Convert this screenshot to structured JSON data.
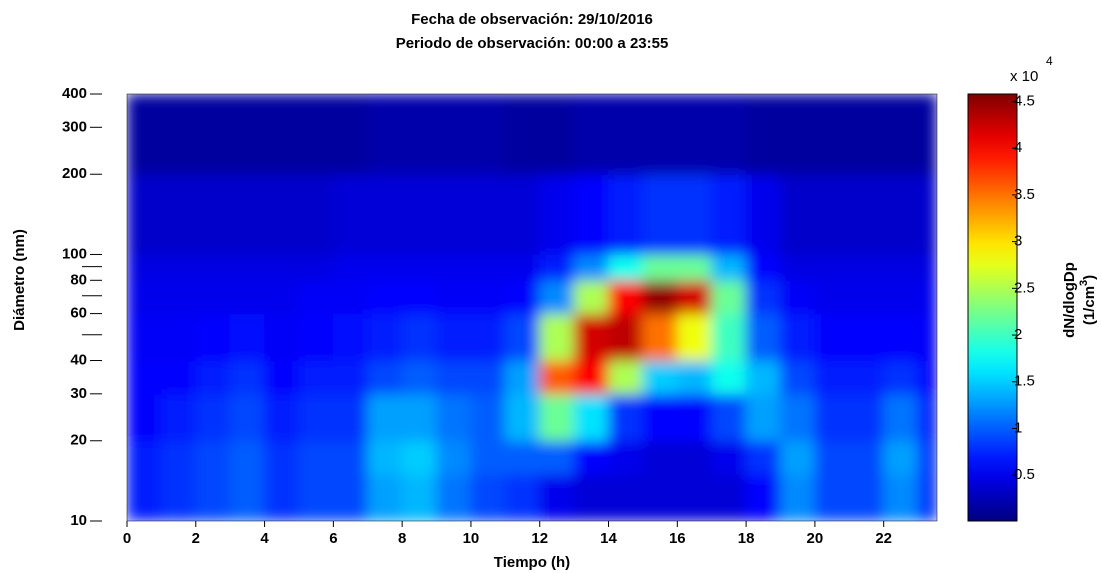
{
  "chart_data": {
    "type": "heatmap",
    "title": "Fecha de observación: 29/10/2016",
    "subtitle": "Periodo de observación: 00:00 a 23:55",
    "xlabel": "Tiempo (h)",
    "ylabel": "Diámetro (nm)",
    "colorbar_label": "dN/dlogDp",
    "colorbar_unit_parts": [
      "(1/cm",
      "3",
      ")"
    ],
    "colorbar_multiplier": "x 10",
    "colorbar_exponent": "4",
    "colormap": "jet",
    "yscale": "log",
    "xlim": [
      0,
      23.55
    ],
    "xticks": [
      0,
      2,
      4,
      6,
      8,
      10,
      12,
      14,
      16,
      18,
      20,
      22
    ],
    "ylim": [
      10,
      400
    ],
    "yticks": [
      10,
      20,
      30,
      40,
      60,
      80,
      100,
      200,
      300,
      400
    ],
    "yminor": [
      50,
      70,
      90
    ],
    "clim": [
      0.01,
      4.58
    ],
    "cticks": [
      0.5,
      1,
      1.5,
      2,
      2.5,
      3,
      3.5,
      4,
      4.5
    ],
    "x_edges": [
      0,
      1,
      2,
      3,
      4,
      5,
      6,
      7,
      8,
      9,
      10,
      11,
      12,
      13,
      14,
      15,
      16,
      17,
      18,
      19,
      20,
      21,
      22,
      23,
      23.55
    ],
    "y_edges": [
      10,
      15,
      20,
      30,
      40,
      60,
      80,
      100,
      200,
      400
    ],
    "values": [
      [
        0.7,
        0.7,
        0.6,
        0.6,
        0.55,
        0.5,
        0.45,
        0.35,
        0.15
      ],
      [
        0.8,
        0.8,
        0.7,
        0.6,
        0.55,
        0.5,
        0.45,
        0.35,
        0.15
      ],
      [
        0.9,
        0.9,
        0.8,
        0.7,
        0.6,
        0.5,
        0.45,
        0.35,
        0.15
      ],
      [
        1.0,
        1.0,
        0.9,
        0.8,
        0.65,
        0.5,
        0.45,
        0.35,
        0.15
      ],
      [
        0.8,
        0.8,
        0.7,
        0.6,
        0.55,
        0.5,
        0.45,
        0.35,
        0.15
      ],
      [
        0.9,
        0.9,
        0.8,
        0.7,
        0.6,
        0.55,
        0.45,
        0.35,
        0.15
      ],
      [
        0.9,
        0.9,
        0.8,
        0.7,
        0.65,
        0.55,
        0.5,
        0.4,
        0.15
      ],
      [
        1.3,
        1.4,
        1.3,
        0.9,
        0.7,
        0.6,
        0.5,
        0.4,
        0.2
      ],
      [
        1.4,
        1.5,
        1.3,
        1.0,
        0.8,
        0.6,
        0.5,
        0.4,
        0.2
      ],
      [
        1.1,
        1.2,
        1.1,
        0.9,
        0.7,
        0.55,
        0.5,
        0.4,
        0.2
      ],
      [
        0.9,
        1.0,
        1.0,
        0.9,
        0.7,
        0.55,
        0.5,
        0.4,
        0.2
      ],
      [
        0.8,
        1.0,
        1.4,
        1.3,
        0.9,
        0.6,
        0.5,
        0.4,
        0.15
      ],
      [
        0.5,
        1.0,
        2.2,
        3.6,
        2.5,
        1.2,
        0.7,
        0.5,
        0.15
      ],
      [
        0.4,
        0.6,
        1.6,
        4.0,
        4.2,
        2.5,
        1.2,
        0.6,
        0.2
      ],
      [
        0.4,
        0.5,
        0.8,
        2.5,
        4.3,
        4.0,
        1.8,
        0.7,
        0.2
      ],
      [
        0.4,
        0.4,
        0.6,
        1.5,
        3.5,
        4.5,
        2.2,
        0.8,
        0.2
      ],
      [
        0.4,
        0.4,
        0.6,
        1.4,
        2.8,
        4.2,
        2.2,
        0.8,
        0.2
      ],
      [
        0.4,
        0.5,
        0.9,
        1.8,
        2.0,
        2.2,
        1.4,
        0.7,
        0.2
      ],
      [
        0.6,
        0.8,
        1.3,
        1.4,
        1.0,
        0.8,
        0.6,
        0.5,
        0.15
      ],
      [
        1.2,
        1.3,
        1.1,
        0.9,
        0.7,
        0.55,
        0.45,
        0.35,
        0.15
      ],
      [
        0.9,
        0.9,
        0.8,
        0.7,
        0.6,
        0.5,
        0.45,
        0.35,
        0.15
      ],
      [
        0.9,
        0.9,
        0.8,
        0.7,
        0.6,
        0.5,
        0.45,
        0.35,
        0.15
      ],
      [
        1.2,
        1.3,
        1.1,
        0.8,
        0.6,
        0.5,
        0.45,
        0.35,
        0.15
      ],
      [
        0.8,
        0.8,
        0.7,
        0.6,
        0.55,
        0.5,
        0.45,
        0.35,
        0.15
      ]
    ]
  }
}
